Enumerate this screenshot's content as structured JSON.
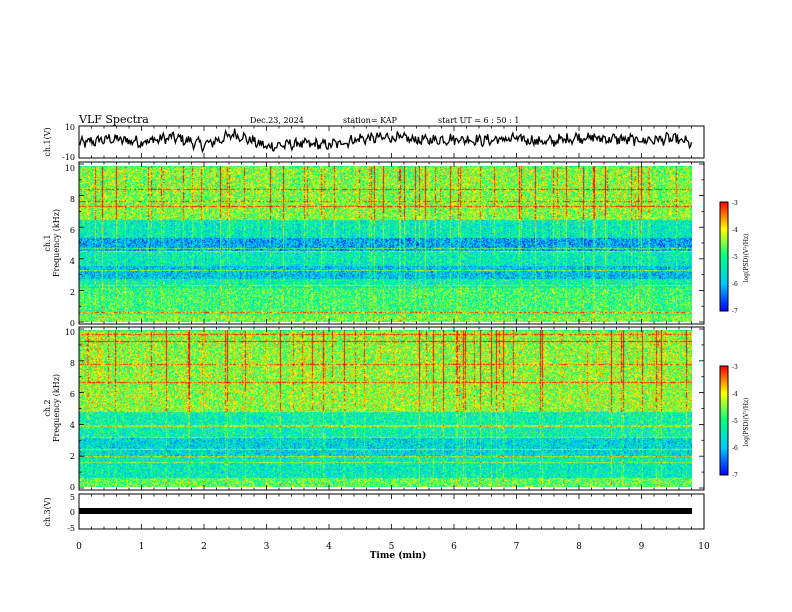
{
  "header": {
    "title": "VLF Spectra",
    "date": "Dec.23, 2024",
    "station": "station= KAP",
    "start": "start  UT =   6  : 50 : 1"
  },
  "colorbar_label": "log(PSD)(V²/Hz)",
  "colors": {
    "trace": "#000000",
    "frame": "#000000",
    "colormap": [
      "#0000ff",
      "#00c8ff",
      "#00ff80",
      "#ffff00",
      "#ff0000"
    ]
  },
  "chart_data": [
    {
      "type": "line",
      "name": "ch1-waveform",
      "ylabel": "ch.1(V)",
      "ylim": [
        -10,
        10
      ],
      "yticks": [
        10,
        -10
      ],
      "xlim": [
        0,
        10
      ],
      "description_values": {
        "x": [
          0,
          0.5,
          1,
          1.5,
          2,
          2.5,
          3,
          3.5,
          4,
          4.5,
          5,
          5.5,
          6,
          6.5,
          7,
          7.5,
          8,
          8.5,
          9,
          9.5,
          9.8
        ],
        "y": [
          -1,
          2,
          0,
          3,
          -2,
          5,
          -3,
          -1,
          -2,
          2,
          3,
          1,
          2,
          1,
          2,
          0,
          3,
          2,
          1,
          2,
          -1
        ]
      }
    },
    {
      "type": "heatmap",
      "name": "ch1-spectrogram",
      "ylabel": "ch.1",
      "ylabel2": "Frequency (kHz)",
      "ylim": [
        0,
        10
      ],
      "yticks": [
        10,
        8,
        6,
        4,
        2,
        0
      ],
      "xlim": [
        0,
        9.8
      ],
      "colorbar": {
        "range": [
          -7,
          -3
        ],
        "ticks": [
          -3,
          -4,
          -5,
          -6,
          -7
        ]
      },
      "band_levels": [
        {
          "f": [
            0,
            0.5
          ],
          "level": -4.6
        },
        {
          "f": [
            0.5,
            2.2
          ],
          "level": -4.9
        },
        {
          "f": [
            2.2,
            2.8
          ],
          "level": -5.3
        },
        {
          "f": [
            2.8,
            3.6
          ],
          "level": -5.9
        },
        {
          "f": [
            3.6,
            4.6
          ],
          "level": -5.4
        },
        {
          "f": [
            4.6,
            5.4
          ],
          "level": -6.1
        },
        {
          "f": [
            5.4,
            6.6
          ],
          "level": -5.4
        },
        {
          "f": [
            6.6,
            10
          ],
          "level": -4.5
        }
      ]
    },
    {
      "type": "heatmap",
      "name": "ch2-spectrogram",
      "ylabel": "ch.2",
      "ylabel2": "Frequency (kHz)",
      "ylim": [
        0,
        10
      ],
      "yticks": [
        10,
        8,
        6,
        4,
        2,
        0
      ],
      "xlim": [
        0,
        9.8
      ],
      "colorbar": {
        "range": [
          -7,
          -3
        ],
        "ticks": [
          -3,
          -4,
          -5,
          -6,
          -7
        ]
      },
      "band_levels": [
        {
          "f": [
            0,
            0.6
          ],
          "level": -4.7
        },
        {
          "f": [
            0.6,
            2.0
          ],
          "level": -5.4
        },
        {
          "f": [
            2.0,
            3.2
          ],
          "level": -5.7
        },
        {
          "f": [
            3.2,
            4.8
          ],
          "level": -5.3
        },
        {
          "f": [
            4.8,
            10
          ],
          "level": -4.4
        }
      ]
    },
    {
      "type": "line",
      "name": "ch3-waveform",
      "ylabel": "ch.3(V)",
      "ylim": [
        -5,
        5
      ],
      "yticks": [
        5,
        0,
        -5
      ],
      "xlim": [
        0,
        10
      ],
      "description_values": {
        "x": [
          0,
          9.8
        ],
        "y": [
          0,
          0
        ]
      }
    }
  ],
  "xaxis": {
    "label": "Time  (min)",
    "ticks": [
      0,
      1,
      2,
      3,
      4,
      5,
      6,
      7,
      8,
      9,
      10
    ]
  }
}
